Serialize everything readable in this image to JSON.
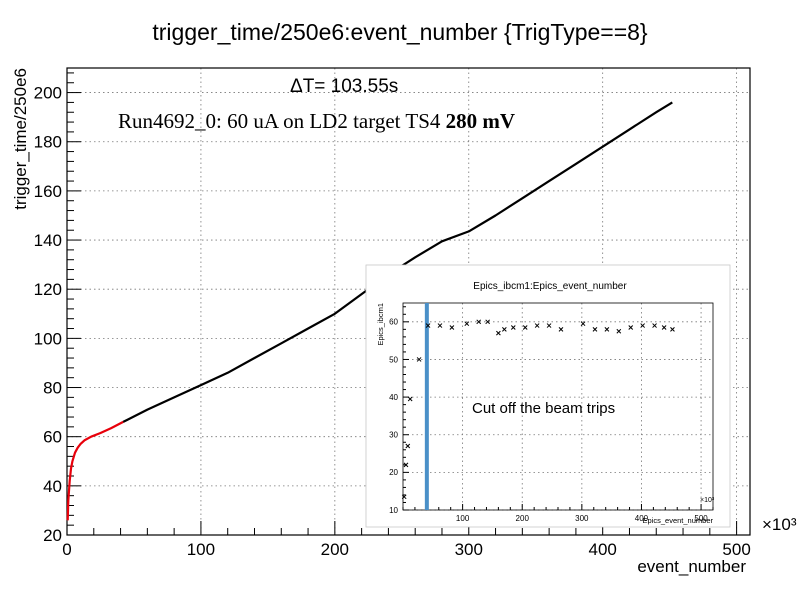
{
  "chart_data": [
    {
      "type": "line",
      "title": "trigger_time/250e6:event_number {TrigType==8}",
      "xlabel": "event_number",
      "ylabel": "trigger_time/250e6",
      "x_multiplier_label": "×10³",
      "xlim": [
        0,
        510
      ],
      "ylim": [
        20,
        210
      ],
      "x_ticks": [
        0,
        100,
        200,
        300,
        400,
        500
      ],
      "y_ticks": [
        20,
        40,
        60,
        80,
        100,
        120,
        140,
        160,
        180,
        200
      ],
      "grid": true,
      "series": [
        {
          "color": "#e8000b",
          "x": [
            0.5,
            1,
            2,
            3,
            4,
            6,
            8,
            10,
            13,
            18,
            25,
            33,
            42
          ],
          "y": [
            26,
            34,
            42,
            47,
            50,
            53.5,
            55.5,
            57,
            58.5,
            60,
            61.5,
            63.5,
            66
          ]
        },
        {
          "color": "#000000",
          "x": [
            42,
            60,
            80,
            100,
            120,
            140,
            160,
            180,
            200,
            220,
            240,
            260,
            280,
            300,
            320,
            340,
            360,
            380,
            400,
            420,
            440,
            452
          ],
          "y": [
            66,
            71,
            76,
            81,
            86,
            92,
            98,
            104,
            110,
            118,
            126,
            133,
            139.5,
            143.5,
            150,
            157,
            164,
            171,
            178,
            185,
            192,
            196
          ]
        }
      ]
    },
    {
      "type": "scatter",
      "title": "Epics_ibcm1:Epics_event_number",
      "xlabel": "Epics_event_number",
      "ylabel": "Epics_ibcm1",
      "x_multiplier_label": "×10³",
      "xlim": [
        0,
        520
      ],
      "ylim": [
        10,
        65
      ],
      "x_ticks": [
        100,
        200,
        300,
        400,
        500
      ],
      "y_ticks": [
        10,
        20,
        30,
        40,
        50,
        60
      ],
      "grid": true,
      "cut_line_x": 40,
      "cut_line_color": "#4a90c8",
      "points": {
        "x": [
          2,
          5,
          8,
          12,
          27,
          42,
          62,
          82,
          107,
          127,
          142,
          160,
          170,
          185,
          205,
          225,
          245,
          265,
          302,
          322,
          342,
          362,
          382,
          402,
          422,
          438,
          452
        ],
        "y": [
          13.5,
          22,
          27,
          39.5,
          50,
          59,
          59,
          58.5,
          59.5,
          60,
          60,
          57,
          58,
          58.5,
          58.5,
          59,
          59,
          58,
          59.5,
          58,
          58,
          57.5,
          58.5,
          59,
          59,
          58.5,
          58
        ]
      }
    }
  ],
  "annotations": {
    "delta_t": "ΔT= 103.55s",
    "run_text": "Run4692_0: 60 uA on LD2 target TS4 ",
    "run_bold": "280 mV",
    "cut_text": "Cut off the beam trips"
  }
}
